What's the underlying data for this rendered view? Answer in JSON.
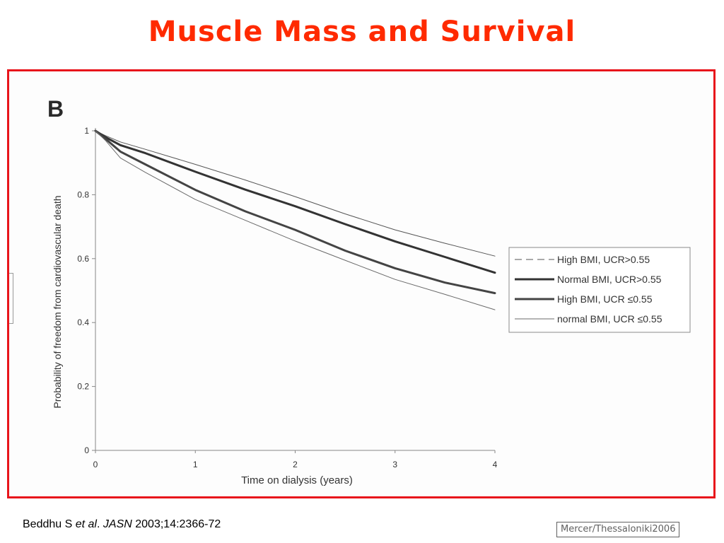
{
  "slide": {
    "title": "Muscle Mass and Survival",
    "citation": {
      "authors": "Beddhu S",
      "etal": "et al",
      "dot": ".",
      "journal": "JASN",
      "details": "2003;14:2366-72"
    },
    "credit": "Mercer/Thessaloniki2006"
  },
  "chart_data": {
    "type": "line",
    "panel_label": "B",
    "xlabel": "Time on dialysis (years)",
    "ylabel": "Probability of freedom from cardiovascular death",
    "xlim": [
      0,
      4
    ],
    "ylim": [
      0,
      1
    ],
    "x_ticks": [
      "0",
      "1",
      "2",
      "3",
      "4"
    ],
    "y_ticks": [
      "0",
      "0.2",
      "0.4",
      "0.6",
      "0.8",
      "1"
    ],
    "grid": false,
    "legend_position": "right",
    "x": [
      0,
      0.1,
      0.25,
      0.5,
      1,
      1.5,
      2,
      2.5,
      3,
      3.5,
      4
    ],
    "series": [
      {
        "name": "High BMI, UCR>0.55",
        "style": "thin",
        "color": "#555555",
        "values": [
          1,
          0.985,
          0.965,
          0.942,
          0.895,
          0.846,
          0.794,
          0.74,
          0.69,
          0.648,
          0.608
        ]
      },
      {
        "name": "Normal BMI, UCR>0.55",
        "style": "thick",
        "color": "#333333",
        "values": [
          1,
          0.98,
          0.955,
          0.93,
          0.872,
          0.816,
          0.764,
          0.708,
          0.654,
          0.605,
          0.556
        ]
      },
      {
        "name": "High BMI, UCR ≤0.55",
        "style": "thick",
        "color": "#444444",
        "values": [
          1,
          0.975,
          0.935,
          0.895,
          0.815,
          0.748,
          0.69,
          0.625,
          0.57,
          0.525,
          0.492
        ]
      },
      {
        "name": "normal BMI, UCR ≤0.55",
        "style": "thin",
        "color": "#6a6a6a",
        "values": [
          1,
          0.97,
          0.915,
          0.87,
          0.785,
          0.72,
          0.655,
          0.595,
          0.535,
          0.488,
          0.44
        ]
      }
    ]
  }
}
